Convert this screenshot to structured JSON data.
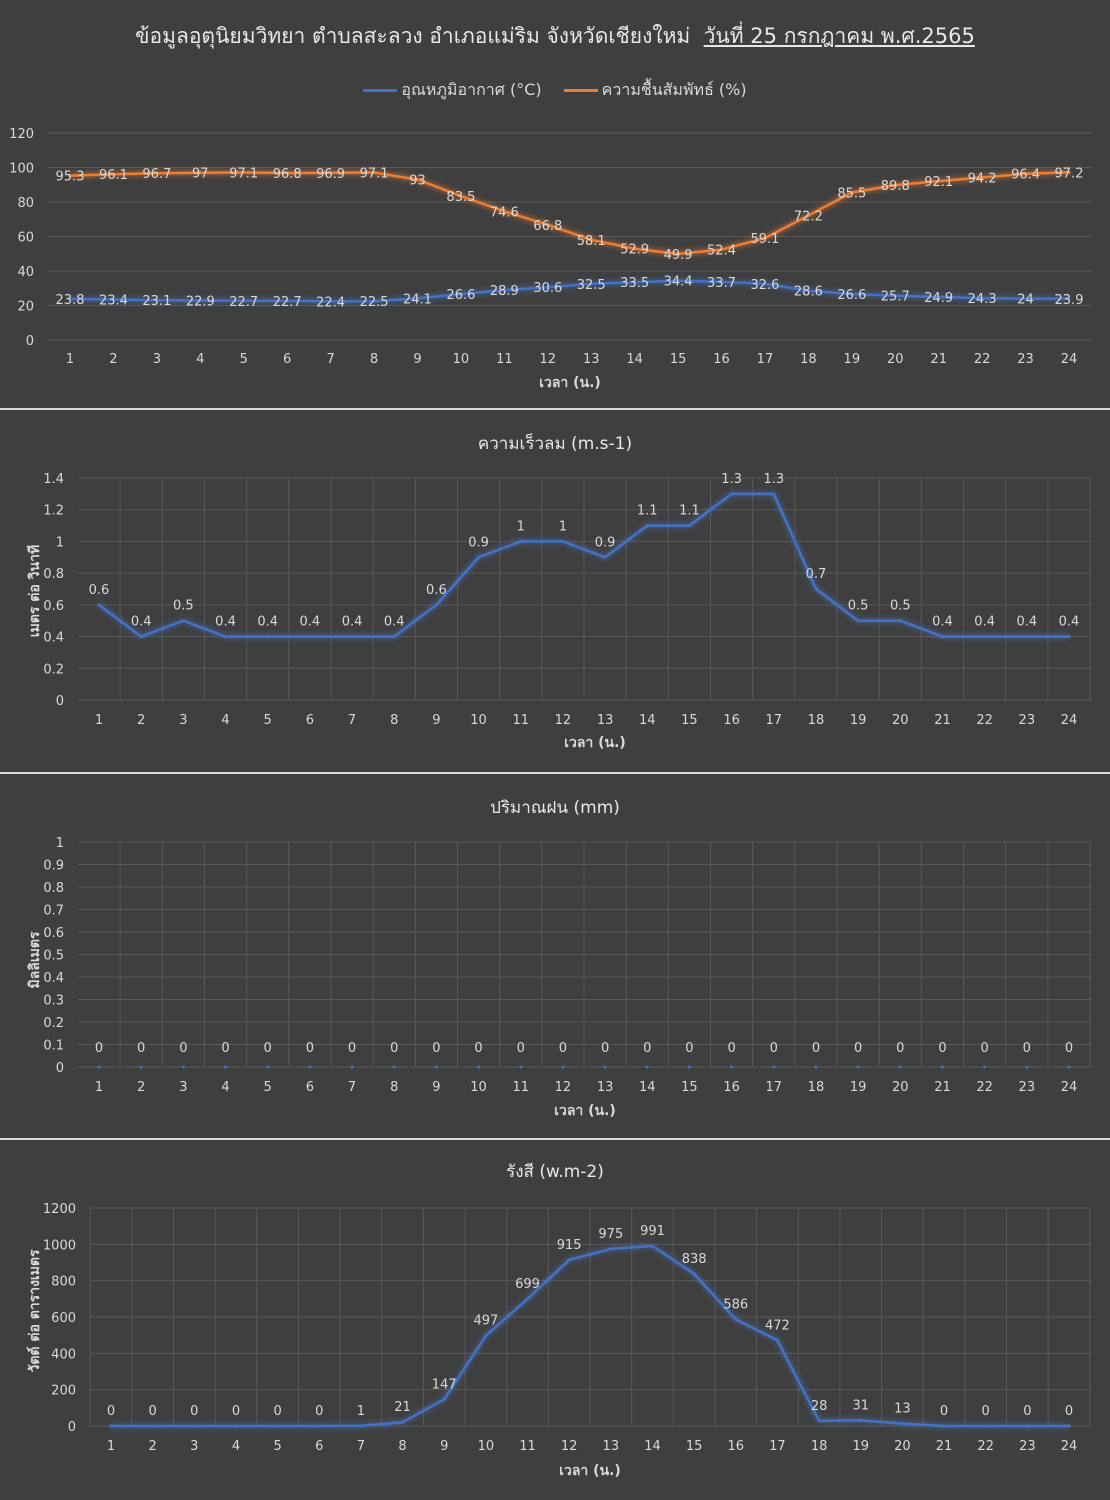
{
  "colors": {
    "temperature": "#4472c4",
    "humidity": "#ed7d31",
    "grid": "#595959",
    "text": "#d9d9d9"
  },
  "chart_data": [
    {
      "id": "temp-humidity",
      "type": "line",
      "title_main": "ข้อมูลอุตุนิยมวิทยา ตำบลสะลวง อำเภอแม่ริม จังหวัดเชียงใหม่",
      "title_date": "วันที่ 25 กรกฎาคม พ.ศ.2565",
      "xlabel": "เวลา (น.)",
      "ylabel": "",
      "ylim": [
        0,
        120
      ],
      "yticks": [
        "0",
        "20",
        "40",
        "60",
        "80",
        "100",
        "120"
      ],
      "grid": "horizontal",
      "legend": "top-center",
      "x": [
        "1",
        "2",
        "3",
        "4",
        "5",
        "6",
        "7",
        "8",
        "9",
        "10",
        "11",
        "12",
        "13",
        "14",
        "15",
        "16",
        "17",
        "18",
        "19",
        "20",
        "21",
        "22",
        "23",
        "24"
      ],
      "series": [
        {
          "name": "อุณหภูมิอากาศ (°C)",
          "color": "#4472c4",
          "values": [
            23.8,
            23.4,
            23.1,
            22.9,
            22.7,
            22.7,
            22.4,
            22.5,
            24.1,
            26.6,
            28.9,
            30.6,
            32.5,
            33.5,
            34.4,
            33.7,
            32.6,
            28.6,
            26.6,
            25.7,
            24.9,
            24.3,
            24,
            23.9
          ]
        },
        {
          "name": "ความชื้นสัมพัทธ์ (%)",
          "color": "#ed7d31",
          "values": [
            95.3,
            96.1,
            96.7,
            97,
            97.1,
            96.8,
            96.9,
            97.1,
            93,
            83.5,
            74.6,
            66.8,
            58.1,
            52.9,
            49.9,
            52.4,
            59.1,
            72.2,
            85.5,
            89.8,
            92.1,
            94.2,
            96.4,
            97.2
          ]
        }
      ]
    },
    {
      "id": "wind",
      "type": "line",
      "title": "ความเร็วลม (m.s-1)",
      "xlabel": "เวลา (น.)",
      "ylabel": "เมตร ต่อ วินาที",
      "ylim": [
        0,
        1.4
      ],
      "yticks": [
        "0",
        "0.2",
        "0.4",
        "0.6",
        "0.8",
        "1",
        "1.2",
        "1.4"
      ],
      "grid": "both",
      "x": [
        "1",
        "2",
        "3",
        "4",
        "5",
        "6",
        "7",
        "8",
        "9",
        "10",
        "11",
        "12",
        "13",
        "14",
        "15",
        "16",
        "17",
        "18",
        "19",
        "20",
        "21",
        "22",
        "23",
        "24"
      ],
      "series": [
        {
          "name": "",
          "color": "#4472c4",
          "values": [
            0.6,
            0.4,
            0.5,
            0.4,
            0.4,
            0.4,
            0.4,
            0.4,
            0.6,
            0.9,
            1,
            1,
            0.9,
            1.1,
            1.1,
            1.3,
            1.3,
            0.7,
            0.5,
            0.5,
            0.4,
            0.4,
            0.4,
            0.4
          ]
        }
      ]
    },
    {
      "id": "rain",
      "type": "line",
      "title": "ปริมาณฝน (mm)",
      "xlabel": "เวลา (น.)",
      "ylabel": "มิลลิเมตร",
      "ylim": [
        0,
        1
      ],
      "yticks": [
        "0",
        "0.1",
        "0.2",
        "0.3",
        "0.4",
        "0.5",
        "0.6",
        "0.7",
        "0.8",
        "0.9",
        "1"
      ],
      "grid": "both",
      "x": [
        "1",
        "2",
        "3",
        "4",
        "5",
        "6",
        "7",
        "8",
        "9",
        "10",
        "11",
        "12",
        "13",
        "14",
        "15",
        "16",
        "17",
        "18",
        "19",
        "20",
        "21",
        "22",
        "23",
        "24"
      ],
      "series": [
        {
          "name": "",
          "color": "#4472c4",
          "values": [
            0,
            0,
            0,
            0,
            0,
            0,
            0,
            0,
            0,
            0,
            0,
            0,
            0,
            0,
            0,
            0,
            0,
            0,
            0,
            0,
            0,
            0,
            0,
            0
          ]
        }
      ]
    },
    {
      "id": "radiation",
      "type": "line",
      "title": "รังสี (w.m-2)",
      "xlabel": "เวลา (น.)",
      "ylabel": "วัตต์ ต่อ ตารางเมตร",
      "ylim": [
        0,
        1200
      ],
      "yticks": [
        "0",
        "200",
        "400",
        "600",
        "800",
        "1000",
        "1200"
      ],
      "grid": "both",
      "x": [
        "1",
        "2",
        "3",
        "4",
        "5",
        "6",
        "7",
        "8",
        "9",
        "10",
        "11",
        "12",
        "13",
        "14",
        "15",
        "16",
        "17",
        "18",
        "19",
        "20",
        "21",
        "22",
        "23",
        "24"
      ],
      "series": [
        {
          "name": "",
          "color": "#4472c4",
          "values": [
            0,
            0,
            0,
            0,
            0,
            0,
            1,
            21,
            147,
            497,
            699,
            915,
            975,
            991,
            838,
            586,
            472,
            28,
            31,
            13,
            0,
            0,
            0,
            0
          ]
        }
      ]
    }
  ]
}
